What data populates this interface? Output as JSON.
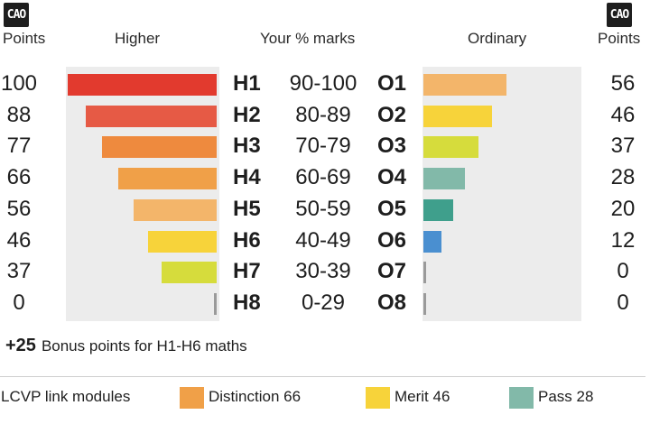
{
  "logo_text": "CAO",
  "header": {
    "points_left": "Points",
    "higher": "Higher",
    "your_marks": "Your % marks",
    "ordinary": "Ordinary",
    "points_right": "Points"
  },
  "chart_data": {
    "type": "bar",
    "rows": [
      {
        "higher_grade": "H1",
        "range": "90-100",
        "ordinary_grade": "O1"
      },
      {
        "higher_grade": "H2",
        "range": "80-89",
        "ordinary_grade": "O2"
      },
      {
        "higher_grade": "H3",
        "range": "70-79",
        "ordinary_grade": "O3"
      },
      {
        "higher_grade": "H4",
        "range": "60-69",
        "ordinary_grade": "O4"
      },
      {
        "higher_grade": "H5",
        "range": "50-59",
        "ordinary_grade": "O5"
      },
      {
        "higher_grade": "H6",
        "range": "40-49",
        "ordinary_grade": "O6"
      },
      {
        "higher_grade": "H7",
        "range": "30-39",
        "ordinary_grade": "O7"
      },
      {
        "higher_grade": "H8",
        "range": "0-29",
        "ordinary_grade": "O8"
      }
    ],
    "series": [
      {
        "name": "Higher",
        "values": [
          100,
          88,
          77,
          66,
          56,
          46,
          37,
          0
        ],
        "colors": [
          "#e23a2e",
          "#e65a45",
          "#ee8a3e",
          "#f0a048",
          "#f3b56a",
          "#f7d33a",
          "#d6dc3c",
          "#9a9a9a"
        ]
      },
      {
        "name": "Ordinary",
        "values": [
          56,
          46,
          37,
          28,
          20,
          12,
          0,
          0
        ],
        "colors": [
          "#f3b56a",
          "#f7d33a",
          "#d6dc3c",
          "#82b9a9",
          "#3f9f8c",
          "#4a8fd0",
          "#9a9a9a",
          "#9a9a9a"
        ]
      }
    ],
    "xlim": [
      0,
      100
    ]
  },
  "bonus": {
    "value": "+25",
    "text": "Bonus points for H1-H6 maths"
  },
  "lcvp": {
    "label": "LCVP link modules",
    "items": [
      {
        "label": "Distinction 66",
        "color": "#f0a048"
      },
      {
        "label": "Merit 46",
        "color": "#f7d33a"
      },
      {
        "label": "Pass 28",
        "color": "#82b9a9"
      }
    ]
  }
}
